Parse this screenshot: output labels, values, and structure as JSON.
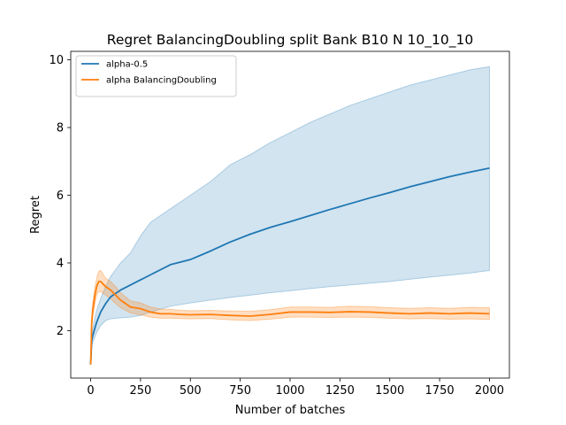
{
  "chart_data": {
    "type": "line",
    "title": "Regret BalancingDoubling split Bank B10 N 10_10_10",
    "xlabel": "Number of batches",
    "ylabel": "Regret",
    "xlim": [
      -100,
      2100
    ],
    "ylim": [
      0.6,
      10.25
    ],
    "xticks": [
      0,
      250,
      500,
      750,
      1000,
      1250,
      1500,
      1750,
      2000
    ],
    "yticks": [
      2,
      4,
      6,
      8,
      10
    ],
    "grid": false,
    "legend_position": "top-left",
    "series": [
      {
        "name": "alpha-0.5",
        "color": "#1f77b4",
        "band_opacity": 0.2,
        "x": [
          0,
          5,
          10,
          20,
          30,
          50,
          75,
          100,
          150,
          200,
          250,
          300,
          400,
          500,
          600,
          700,
          800,
          900,
          1000,
          1100,
          1200,
          1300,
          1400,
          1500,
          1600,
          1700,
          1800,
          1900,
          2000
        ],
        "y": [
          1.0,
          1.7,
          1.85,
          2.05,
          2.25,
          2.55,
          2.8,
          3.0,
          3.2,
          3.35,
          3.5,
          3.65,
          3.95,
          4.1,
          4.35,
          4.62,
          4.85,
          5.05,
          5.22,
          5.4,
          5.58,
          5.75,
          5.92,
          6.08,
          6.25,
          6.4,
          6.55,
          6.68,
          6.8
        ],
        "lower": [
          1.0,
          1.55,
          1.65,
          1.8,
          1.95,
          2.15,
          2.3,
          2.35,
          2.38,
          2.4,
          2.45,
          2.55,
          2.72,
          2.82,
          2.9,
          2.98,
          3.05,
          3.12,
          3.18,
          3.24,
          3.3,
          3.35,
          3.4,
          3.45,
          3.52,
          3.58,
          3.64,
          3.7,
          3.78
        ],
        "upper": [
          1.0,
          1.85,
          2.05,
          2.35,
          2.6,
          2.95,
          3.3,
          3.6,
          4.0,
          4.3,
          4.8,
          5.2,
          5.6,
          6.0,
          6.4,
          6.9,
          7.2,
          7.55,
          7.85,
          8.15,
          8.4,
          8.65,
          8.85,
          9.05,
          9.25,
          9.4,
          9.55,
          9.7,
          9.8
        ]
      },
      {
        "name": "alpha BalancingDoubling",
        "color": "#ff7f0e",
        "band_opacity": 0.25,
        "x": [
          0,
          5,
          10,
          20,
          30,
          40,
          50,
          75,
          100,
          125,
          150,
          175,
          200,
          250,
          300,
          350,
          400,
          450,
          500,
          600,
          700,
          800,
          900,
          1000,
          1100,
          1200,
          1300,
          1400,
          1500,
          1600,
          1700,
          1800,
          1900,
          2000
        ],
        "y": [
          1.0,
          2.2,
          2.6,
          3.0,
          3.3,
          3.45,
          3.45,
          3.3,
          3.2,
          3.05,
          2.9,
          2.8,
          2.7,
          2.65,
          2.55,
          2.5,
          2.5,
          2.48,
          2.47,
          2.48,
          2.45,
          2.43,
          2.48,
          2.55,
          2.55,
          2.54,
          2.56,
          2.55,
          2.52,
          2.5,
          2.52,
          2.5,
          2.52,
          2.5
        ],
        "lower": [
          1.0,
          2.05,
          2.4,
          2.75,
          3.05,
          3.15,
          3.15,
          3.05,
          2.95,
          2.8,
          2.68,
          2.6,
          2.52,
          2.47,
          2.4,
          2.37,
          2.37,
          2.36,
          2.35,
          2.36,
          2.32,
          2.3,
          2.34,
          2.4,
          2.4,
          2.39,
          2.4,
          2.39,
          2.37,
          2.35,
          2.36,
          2.34,
          2.35,
          2.33
        ],
        "upper": [
          1.0,
          2.35,
          2.8,
          3.25,
          3.55,
          3.75,
          3.78,
          3.55,
          3.45,
          3.3,
          3.12,
          3.0,
          2.88,
          2.82,
          2.7,
          2.64,
          2.63,
          2.6,
          2.59,
          2.6,
          2.58,
          2.57,
          2.62,
          2.7,
          2.7,
          2.69,
          2.72,
          2.71,
          2.68,
          2.66,
          2.68,
          2.66,
          2.69,
          2.68
        ]
      }
    ]
  }
}
